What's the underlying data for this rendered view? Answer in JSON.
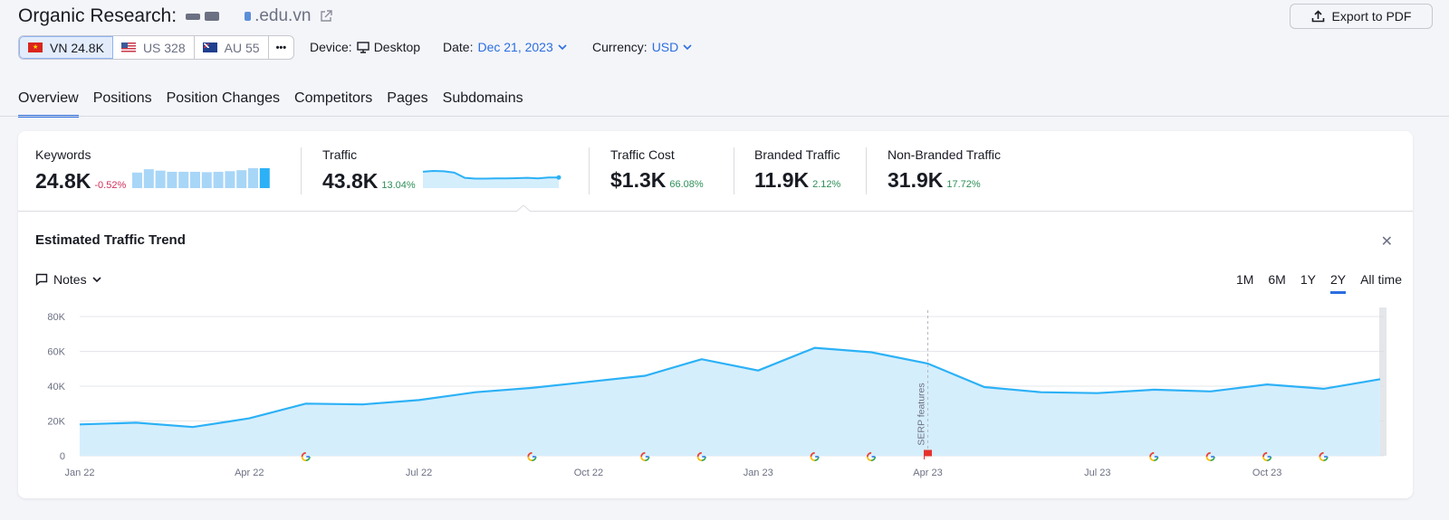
{
  "header": {
    "title": "Organic Research:",
    "domain_suffix": ".edu.vn",
    "export_label": "Export to PDF"
  },
  "databases": [
    {
      "flag": "vn",
      "label": "VN 24.8K"
    },
    {
      "flag": "us",
      "label": "US 328"
    },
    {
      "flag": "au",
      "label": "AU 55"
    }
  ],
  "more_label": "•••",
  "meta": {
    "device_label": "Device:",
    "device_value": "Desktop",
    "date_label": "Date:",
    "date_value": "Dec 21, 2023",
    "currency_label": "Currency:",
    "currency_value": "USD"
  },
  "tabs": [
    "Overview",
    "Positions",
    "Position Changes",
    "Competitors",
    "Pages",
    "Subdomains"
  ],
  "metrics": {
    "keywords": {
      "label": "Keywords",
      "value": "24.8K",
      "change": "-0.52%"
    },
    "traffic": {
      "label": "Traffic",
      "value": "43.8K",
      "change": "13.04%"
    },
    "traffic_cost": {
      "label": "Traffic Cost",
      "value": "$1.3K",
      "change": "66.08%"
    },
    "branded": {
      "label": "Branded Traffic",
      "value": "11.9K",
      "change": "2.12%"
    },
    "nonbranded": {
      "label": "Non-Branded Traffic",
      "value": "31.9K",
      "change": "17.72%"
    }
  },
  "keywords_spark": [
    0.78,
    0.95,
    0.88,
    0.82,
    0.82,
    0.82,
    0.8,
    0.82,
    0.85,
    0.9,
    1.0,
    1.0
  ],
  "traffic_spark": [
    0.95,
    1.0,
    0.98,
    0.9,
    0.6,
    0.55,
    0.55,
    0.57,
    0.57,
    0.58,
    0.6,
    0.57,
    0.62,
    0.62
  ],
  "trend": {
    "title": "Estimated Traffic Trend",
    "notes_label": "Notes",
    "periods": [
      "1M",
      "6M",
      "1Y",
      "2Y",
      "All time"
    ],
    "active_period": "2Y",
    "annotation": "SERP features"
  },
  "colors": {
    "accent": "#2b6ee0",
    "line": "#2cb1f6",
    "area": "#d5eefc",
    "negative": "#d1305c",
    "positive": "#2e8f58"
  },
  "chart_data": {
    "type": "area",
    "title": "Estimated Traffic Trend",
    "x": [
      "Jan 22",
      "Feb 22",
      "Mar 22",
      "Apr 22",
      "May 22",
      "Jun 22",
      "Jul 22",
      "Aug 22",
      "Sep 22",
      "Oct 22",
      "Nov 22",
      "Dec 22",
      "Jan 23",
      "Feb 23",
      "Mar 23",
      "Apr 23",
      "May 23",
      "Jun 23",
      "Jul 23",
      "Aug 23",
      "Sep 23",
      "Oct 23",
      "Nov 23",
      "Dec 23"
    ],
    "y": [
      18000,
      19000,
      16500,
      21500,
      30000,
      29500,
      32000,
      36500,
      39000,
      42500,
      46000,
      55500,
      49000,
      62000,
      59500,
      53000,
      39500,
      36500,
      36000,
      38000,
      37000,
      41000,
      38500,
      44000
    ],
    "x_tick_labels": [
      "Jan 22",
      "Apr 22",
      "Jul 22",
      "Oct 22",
      "Jan 23",
      "Apr 23",
      "Jul 23",
      "Oct 23"
    ],
    "y_ticks": [
      "0",
      "20K",
      "40K",
      "60K",
      "80K"
    ],
    "ylim": [
      0,
      80000
    ],
    "grid": true,
    "google_update_markers": [
      "May 22",
      "Sep 22",
      "Nov 22",
      "Dec 22",
      "Feb 23",
      "Mar 23",
      "Aug 23",
      "Sep 23",
      "Oct 23",
      "Nov 23"
    ],
    "note_marker": "Apr 23"
  }
}
